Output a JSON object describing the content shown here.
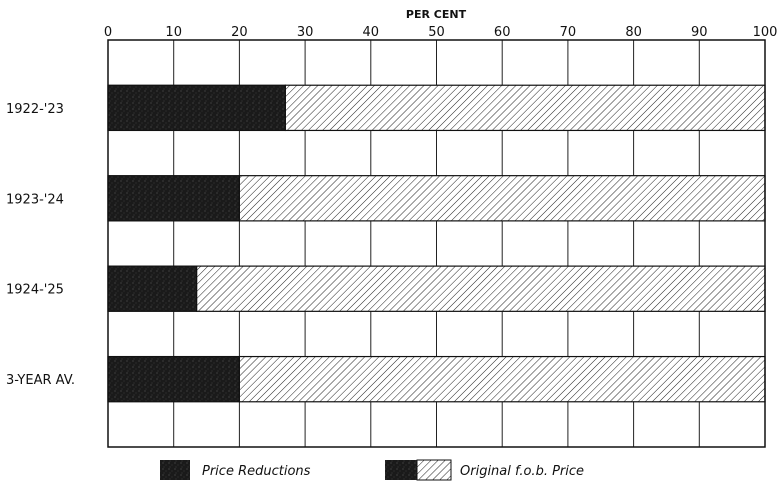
{
  "chart_data": {
    "type": "bar",
    "orientation": "horizontal",
    "stacked": true,
    "xlabel": "PER CENT",
    "xlim": [
      0,
      100
    ],
    "x_ticks": [
      0,
      10,
      20,
      30,
      40,
      50,
      60,
      70,
      80,
      90,
      100
    ],
    "categories": [
      "1922-'23",
      "1923-'24",
      "1924-'25",
      "3-YEAR AV."
    ],
    "series": [
      {
        "name": "Price Reductions",
        "values": [
          27,
          20,
          13.5,
          20
        ],
        "color": "#1a1a1a",
        "pattern": "dark-stipple"
      },
      {
        "name": "Original f.o.b. Price",
        "values": [
          73,
          80,
          86.5,
          80
        ],
        "color": "#ffffff",
        "pattern": "diagonal-hatch"
      }
    ],
    "grid": true,
    "legend_position": "bottom"
  }
}
